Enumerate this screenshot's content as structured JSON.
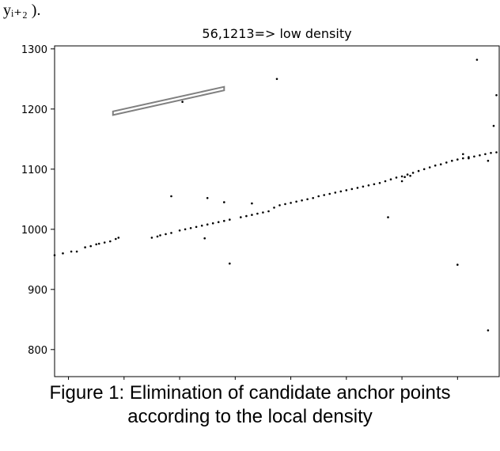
{
  "header_fragment": "yᵢ₊₂ ).",
  "caption": {
    "line1": "Figure 1: Elimination of candidate anchor points",
    "line2": "according to the local density"
  },
  "chart_data": {
    "type": "scatter",
    "title": "56,1213=> low density",
    "xlabel": "",
    "ylabel": "",
    "xlim": [
      15,
      175
    ],
    "ylim": [
      755,
      1305
    ],
    "xticks": [
      20,
      40,
      60,
      80,
      100,
      120,
      140,
      160
    ],
    "yticks": [
      800,
      900,
      1000,
      1100,
      1200,
      1300
    ],
    "grid": false,
    "colors": {
      "points": "#000000",
      "highlight": "#808080"
    },
    "highlight_box": {
      "corners": [
        [
          36,
          1190
        ],
        [
          76,
          1231
        ],
        [
          76,
          1237
        ],
        [
          36,
          1196
        ]
      ]
    },
    "series": [
      {
        "values": [
          [
            15,
            957
          ],
          [
            18,
            960
          ],
          [
            21,
            963
          ],
          [
            23,
            963
          ],
          [
            26,
            970
          ],
          [
            28,
            972
          ],
          [
            30,
            975
          ],
          [
            31,
            976
          ],
          [
            33,
            978
          ],
          [
            35,
            980
          ],
          [
            37,
            984
          ],
          [
            38,
            986
          ],
          [
            50,
            986
          ],
          [
            52,
            988
          ],
          [
            53,
            990
          ],
          [
            55,
            992
          ],
          [
            57,
            994
          ],
          [
            60,
            998
          ],
          [
            62,
            1000
          ],
          [
            64,
            1002
          ],
          [
            66,
            1004
          ],
          [
            68,
            1006
          ],
          [
            70,
            1008
          ],
          [
            72,
            1010
          ],
          [
            74,
            1012
          ],
          [
            76,
            1014
          ],
          [
            78,
            1016
          ],
          [
            82,
            1020
          ],
          [
            84,
            1022
          ],
          [
            86,
            1024
          ],
          [
            88,
            1026
          ],
          [
            90,
            1028
          ],
          [
            92,
            1030
          ],
          [
            94,
            1036
          ],
          [
            96,
            1040
          ],
          [
            98,
            1042
          ],
          [
            100,
            1044
          ],
          [
            102,
            1046
          ],
          [
            104,
            1048
          ],
          [
            106,
            1050
          ],
          [
            108,
            1052
          ],
          [
            110,
            1055
          ],
          [
            112,
            1057
          ],
          [
            114,
            1059
          ],
          [
            116,
            1061
          ],
          [
            118,
            1063
          ],
          [
            120,
            1065
          ],
          [
            122,
            1067
          ],
          [
            124,
            1069
          ],
          [
            126,
            1071
          ],
          [
            128,
            1073
          ],
          [
            130,
            1075
          ],
          [
            132,
            1077
          ],
          [
            134,
            1080
          ],
          [
            136,
            1083
          ],
          [
            138,
            1086
          ],
          [
            140,
            1088
          ],
          [
            142,
            1091
          ],
          [
            144,
            1094
          ],
          [
            146,
            1097
          ],
          [
            148,
            1100
          ],
          [
            150,
            1103
          ],
          [
            152,
            1106
          ],
          [
            154,
            1108
          ],
          [
            156,
            1111
          ],
          [
            158,
            1114
          ],
          [
            160,
            1116
          ],
          [
            162,
            1118
          ],
          [
            164,
            1120
          ],
          [
            166,
            1121
          ],
          [
            168,
            1123
          ],
          [
            170,
            1125
          ],
          [
            172,
            1127
          ],
          [
            174,
            1128
          ],
          [
            140,
            1080
          ],
          [
            141,
            1087
          ],
          [
            143,
            1089
          ],
          [
            162,
            1125
          ],
          [
            164,
            1118
          ],
          [
            171,
            1114
          ],
          [
            57,
            1055
          ],
          [
            70,
            1052
          ],
          [
            76,
            1045
          ],
          [
            86,
            1043
          ],
          [
            69,
            985
          ],
          [
            78,
            943
          ],
          [
            95,
            1250
          ],
          [
            61,
            1212
          ],
          [
            135,
            1020
          ],
          [
            160,
            941
          ],
          [
            167,
            1282
          ],
          [
            174,
            1223
          ],
          [
            173,
            1172
          ],
          [
            171,
            832
          ]
        ]
      }
    ]
  }
}
